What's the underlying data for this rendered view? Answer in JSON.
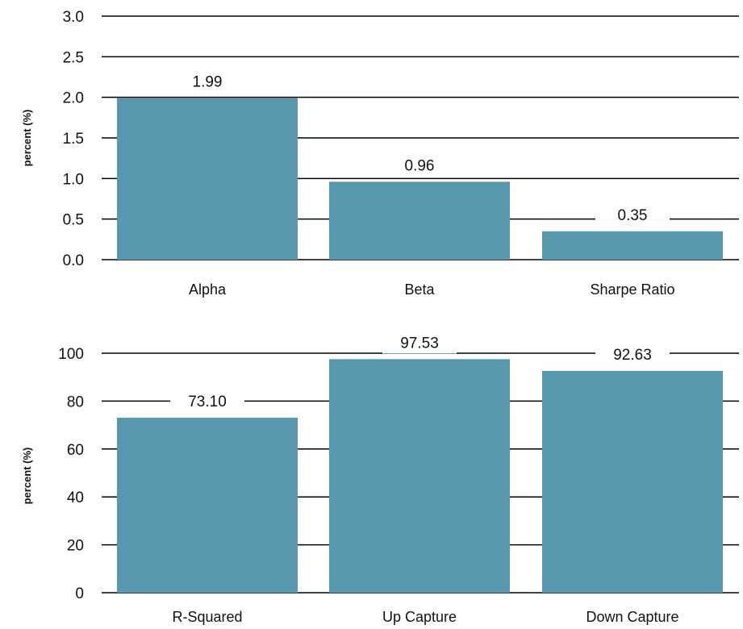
{
  "chart_data": [
    {
      "type": "bar",
      "categories": [
        "Alpha",
        "Beta",
        "Sharpe Ratio"
      ],
      "values": [
        1.99,
        0.96,
        0.35
      ],
      "data_labels": [
        "1.99",
        "0.96",
        "0.35"
      ],
      "yticks": [
        "0.0",
        "0.5",
        "1.0",
        "1.5",
        "2.0",
        "2.5",
        "3.0"
      ],
      "ylim": [
        0,
        3.0
      ],
      "ylabel": "percent (%)",
      "title": "",
      "xlabel": "",
      "grid": true,
      "legend": "none",
      "bar_color": "#5899B0"
    },
    {
      "type": "bar",
      "categories": [
        "R-Squared",
        "Up Capture",
        "Down Capture"
      ],
      "values": [
        73.1,
        97.53,
        92.63
      ],
      "data_labels": [
        "73.10",
        "97.53",
        "92.63"
      ],
      "yticks": [
        "0",
        "20",
        "40",
        "60",
        "80",
        "100"
      ],
      "ylim": [
        0,
        100
      ],
      "ylabel": "percent (%)",
      "title": "",
      "xlabel": "",
      "grid": true,
      "legend": "none",
      "bar_color": "#5899B0"
    }
  ]
}
